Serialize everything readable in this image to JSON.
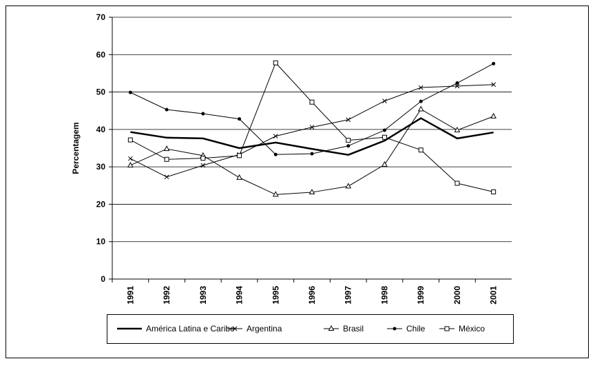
{
  "chart_data": {
    "type": "line",
    "ylabel": "Percentagem",
    "categories": [
      "1991",
      "1992",
      "1993",
      "1994",
      "1995",
      "1996",
      "1997",
      "1998",
      "1999",
      "2000",
      "2001"
    ],
    "ylim": [
      0,
      70
    ],
    "yticks": [
      0,
      10,
      20,
      30,
      40,
      50,
      60,
      70
    ],
    "grid": true,
    "legend": "bottom",
    "series": [
      {
        "name": "América Latina e Caribe",
        "color": "#000000",
        "marker": "none",
        "line_width": 2.5,
        "values": [
          39.3,
          37.8,
          37.6,
          35.0,
          36.5,
          34.8,
          33.2,
          37.0,
          43.0,
          37.6,
          39.2
        ]
      },
      {
        "name": "Argentina",
        "color": "#000000",
        "marker": "x",
        "line_width": 1,
        "values": [
          32.2,
          27.3,
          30.4,
          33.3,
          38.2,
          40.6,
          42.6,
          47.6,
          51.2,
          51.6,
          52.0
        ]
      },
      {
        "name": "Brasil",
        "color": "#000000",
        "marker": "triangle",
        "line_width": 1,
        "values": [
          30.4,
          34.8,
          33.0,
          27.1,
          22.6,
          23.2,
          24.8,
          30.6,
          45.4,
          39.8,
          43.5
        ]
      },
      {
        "name": "Chile",
        "color": "#000000",
        "marker": "circle",
        "line_width": 1,
        "values": [
          49.9,
          45.3,
          44.2,
          42.8,
          33.3,
          33.5,
          35.6,
          39.8,
          47.5,
          52.4,
          57.6
        ]
      },
      {
        "name": "México",
        "color": "#000000",
        "marker": "square",
        "line_width": 1,
        "values": [
          37.2,
          32.0,
          32.3,
          33.0,
          57.8,
          47.3,
          37.1,
          37.9,
          34.5,
          25.6,
          23.3
        ]
      }
    ]
  }
}
